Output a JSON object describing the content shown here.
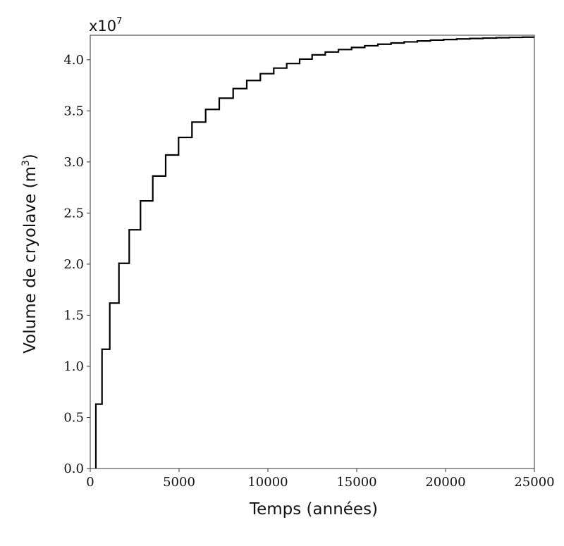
{
  "chart_data": {
    "type": "line",
    "step": true,
    "xlabel": "Temps (années)",
    "ylabel_main": "Volume de cryolave (m",
    "ylabel_sup": "3",
    "ylabel_end": ")",
    "y_multiplier_base": "x10",
    "y_multiplier_exp": "7",
    "xlim": [
      0,
      25000
    ],
    "ylim": [
      0,
      4.24
    ],
    "xticks": [
      0,
      5000,
      10000,
      15000,
      20000,
      25000
    ],
    "xtick_labels": [
      "0",
      "5000",
      "10000",
      "15000",
      "20000",
      "25000"
    ],
    "yticks": [
      0,
      0.5,
      1.0,
      1.5,
      2.0,
      2.5,
      3.0,
      3.5,
      4.0
    ],
    "ytick_labels": [
      "0.0",
      "0.5",
      "1.0",
      "1.5",
      "2.0",
      "2.5",
      "3.0",
      "3.5",
      "4.0"
    ],
    "grid": false,
    "series": [
      {
        "name": "Volume",
        "color": "#000000",
        "x": [
          317,
          663,
          1099,
          1615,
          2194,
          2829,
          3520,
          4246,
          4972,
          5726,
          6496,
          7262,
          8044,
          8810,
          9575,
          10329,
          11059,
          11786,
          12488,
          13230,
          13970,
          14710,
          15450,
          16190,
          16930,
          17670,
          18410,
          19150,
          19890,
          20630,
          21370,
          22110,
          22850,
          23590,
          24330
        ],
        "y": [
          0.63,
          1.167,
          1.619,
          2.008,
          2.336,
          2.619,
          2.862,
          3.068,
          3.24,
          3.39,
          3.514,
          3.624,
          3.718,
          3.797,
          3.864,
          3.918,
          3.963,
          4.006,
          4.048,
          4.076,
          4.1,
          4.12,
          4.137,
          4.152,
          4.164,
          4.175,
          4.184,
          4.192,
          4.198,
          4.204,
          4.208,
          4.212,
          4.216,
          4.219,
          4.221
        ]
      }
    ]
  }
}
